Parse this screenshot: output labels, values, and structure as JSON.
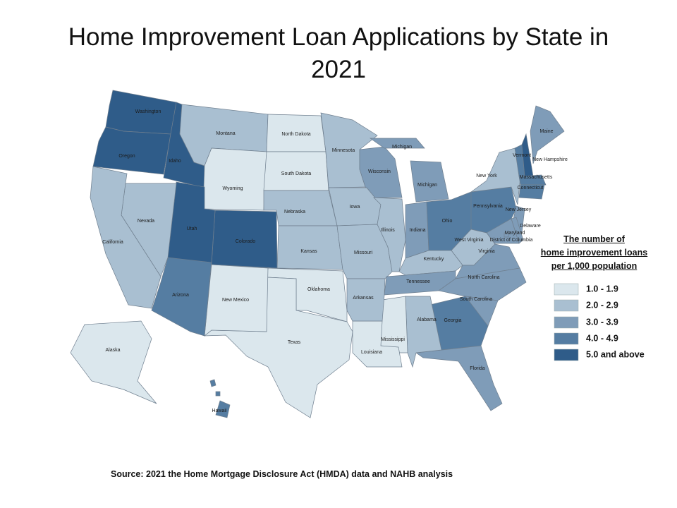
{
  "title": "Home Improvement Loan Applications by State in 2021",
  "legend": {
    "title_lines": [
      "The number of",
      "home improvement loans",
      "per 1,000 population"
    ],
    "items": [
      {
        "label": "1.0 - 1.9",
        "color": "#dbe7ed"
      },
      {
        "label": "2.0 - 2.9",
        "color": "#a9bfd1"
      },
      {
        "label": "3.0 - 3.9",
        "color": "#7f9cb8"
      },
      {
        "label": "4.0 - 4.9",
        "color": "#557da2"
      },
      {
        "label": "5.0 and above",
        "color": "#2f5c89"
      }
    ]
  },
  "states": [
    {
      "name": "Washington",
      "class": 4
    },
    {
      "name": "Oregon",
      "class": 4
    },
    {
      "name": "Idaho",
      "class": 4
    },
    {
      "name": "Montana",
      "class": 1
    },
    {
      "name": "Wyoming",
      "class": 0
    },
    {
      "name": "North Dakota",
      "class": 0
    },
    {
      "name": "South Dakota",
      "class": 0
    },
    {
      "name": "Minnesota",
      "class": 1
    },
    {
      "name": "Wisconsin",
      "class": 2
    },
    {
      "name": "Michigan",
      "class": 2
    },
    {
      "name": "Iowa",
      "class": 1
    },
    {
      "name": "Nebraska",
      "class": 1
    },
    {
      "name": "Kansas",
      "class": 1
    },
    {
      "name": "Missouri",
      "class": 1
    },
    {
      "name": "Illinois",
      "class": 1
    },
    {
      "name": "Indiana",
      "class": 2
    },
    {
      "name": "Ohio",
      "class": 3
    },
    {
      "name": "Pennsylvania",
      "class": 3
    },
    {
      "name": "New York",
      "class": 1
    },
    {
      "name": "Vermont",
      "class": 3
    },
    {
      "name": "New Hampshire",
      "class": 4
    },
    {
      "name": "Maine",
      "class": 2
    },
    {
      "name": "Massachusetts",
      "class": 3
    },
    {
      "name": "Connecticut",
      "class": 3
    },
    {
      "name": "New Jersey",
      "class": 2
    },
    {
      "name": "Delaware",
      "class": 2
    },
    {
      "name": "Maryland",
      "class": 2
    },
    {
      "name": "District of Columbia",
      "class": 2
    },
    {
      "name": "West Virginia",
      "class": 1
    },
    {
      "name": "Virginia",
      "class": 2
    },
    {
      "name": "Kentucky",
      "class": 1
    },
    {
      "name": "Tennessee",
      "class": 2
    },
    {
      "name": "North Carolina",
      "class": 2
    },
    {
      "name": "South Carolina",
      "class": 2
    },
    {
      "name": "Georgia",
      "class": 3
    },
    {
      "name": "Florida",
      "class": 2
    },
    {
      "name": "Alabama",
      "class": 1
    },
    {
      "name": "Mississippi",
      "class": 0
    },
    {
      "name": "Louisiana",
      "class": 0
    },
    {
      "name": "Arkansas",
      "class": 1
    },
    {
      "name": "Oklahoma",
      "class": 0
    },
    {
      "name": "Texas",
      "class": 0
    },
    {
      "name": "New Mexico",
      "class": 0
    },
    {
      "name": "Arizona",
      "class": 3
    },
    {
      "name": "Colorado",
      "class": 4
    },
    {
      "name": "Utah",
      "class": 4
    },
    {
      "name": "Nevada",
      "class": 1
    },
    {
      "name": "California",
      "class": 1
    },
    {
      "name": "Alaska",
      "class": 0
    },
    {
      "name": "Hawaii",
      "class": 3
    }
  ],
  "source": "Source: 2021 the Home Mortgage Disclosure Act (HMDA) data and NAHB analysis"
}
